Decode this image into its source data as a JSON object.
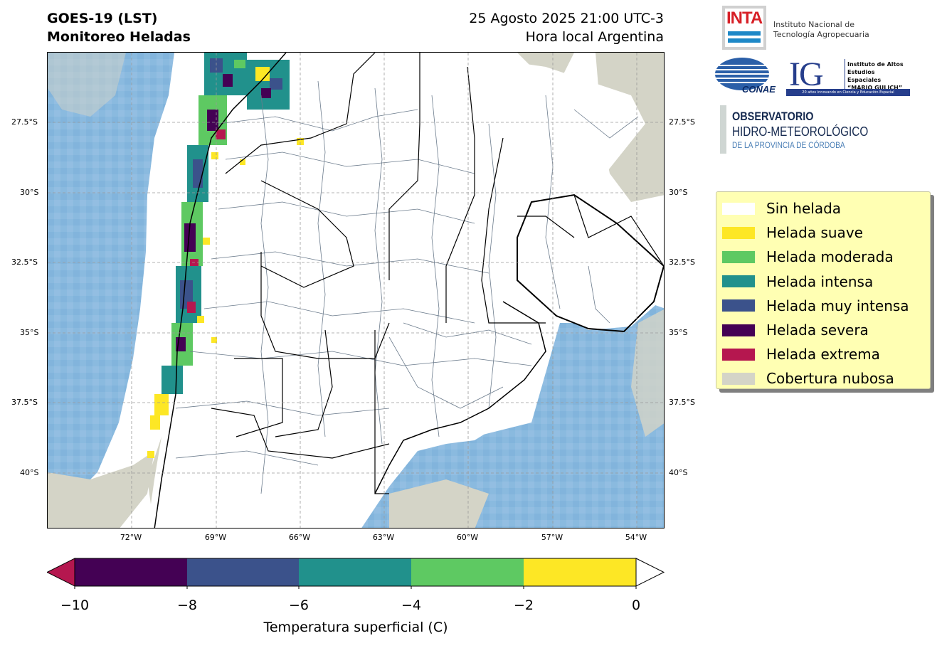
{
  "header": {
    "title_line1": "GOES-19 (LST)",
    "title_line2": "Monitoreo Heladas",
    "date_line1": "25 Agosto 2025 21:00 UTC-3",
    "date_line2": "Hora local Argentina"
  },
  "map": {
    "lat_ticks": [
      "27.5°S",
      "30°S",
      "32.5°S",
      "35°S",
      "37.5°S",
      "40°S"
    ],
    "lon_ticks": [
      "72°W",
      "69°W",
      "66°W",
      "63°W",
      "60°W",
      "57°W",
      "54°W"
    ],
    "colors": {
      "cloud": "#d4d4c7",
      "ocean_lst": "#84b6dd",
      "ocean_lst_alt": "#6fa8d7",
      "border": "#000000",
      "district": "#6b7b8c"
    }
  },
  "legend": {
    "items": [
      {
        "label": "Sin helada",
        "color": "#ffffff"
      },
      {
        "label": "Helada suave",
        "color": "#fde725"
      },
      {
        "label": "Helada moderada",
        "color": "#5ec962"
      },
      {
        "label": "Helada intensa",
        "color": "#21918c"
      },
      {
        "label": "Helada muy intensa",
        "color": "#3b528b"
      },
      {
        "label": "Helada severa",
        "color": "#440154"
      },
      {
        "label": "Helada extrema",
        "color": "#b5174f"
      },
      {
        "label": "Cobertura nubosa",
        "color": "#d4d4c7"
      }
    ]
  },
  "colorbar": {
    "label": "Temperatura superficial (C)",
    "ticks": [
      "−10",
      "−8",
      "−6",
      "−4",
      "−2",
      "0"
    ],
    "segment_colors": [
      "#440154",
      "#3b528b",
      "#21918c",
      "#5ec962",
      "#fde725"
    ],
    "under_color": "#b5174f",
    "over_color": "#ffffff"
  },
  "logos": {
    "inta_word": "INTA",
    "inta_line1": "Instituto Nacional de",
    "inta_line2": "Tecnología Agropecuaria",
    "conae": "CONAE",
    "ig_letters": "IG",
    "ig_line1": "Instituto de Altos",
    "ig_line2": "Estudios Espaciales",
    "ig_line3": "“MARIO GULICH”",
    "ig_footer": "20 años innovando en Ciencia y Educación Espacial",
    "obs_line1": "OBSERVATORIO",
    "obs_line2": "HIDRO-METEOROLÓGICO",
    "obs_line3": "DE LA PROVINCIA DE CÓRDOBA"
  }
}
